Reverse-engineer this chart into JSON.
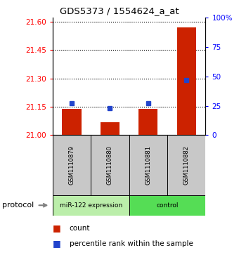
{
  "title": "GDS5373 / 1554624_a_at",
  "samples": [
    "GSM1110879",
    "GSM1110880",
    "GSM1110881",
    "GSM1110882"
  ],
  "groups": [
    {
      "label": "miR-122 expression",
      "samples": [
        0,
        1
      ],
      "color": "#bbeeaa"
    },
    {
      "label": "control",
      "samples": [
        2,
        3
      ],
      "color": "#55dd55"
    }
  ],
  "red_values": [
    21.14,
    21.07,
    21.14,
    21.57
  ],
  "blue_pct": [
    27,
    23,
    27,
    47
  ],
  "ylim_left": [
    21.0,
    21.62
  ],
  "yticks_left": [
    21.0,
    21.15,
    21.3,
    21.45,
    21.6
  ],
  "yticks_right": [
    0,
    25,
    50,
    75,
    100
  ],
  "bar_color": "#cc2200",
  "dot_color": "#2244cc",
  "bar_width": 0.5,
  "baseline": 21.0,
  "background_color": "#ffffff",
  "plot_bg": "#ffffff",
  "legend_count_label": "count",
  "legend_pct_label": "percentile rank within the sample",
  "protocol_label": "protocol"
}
